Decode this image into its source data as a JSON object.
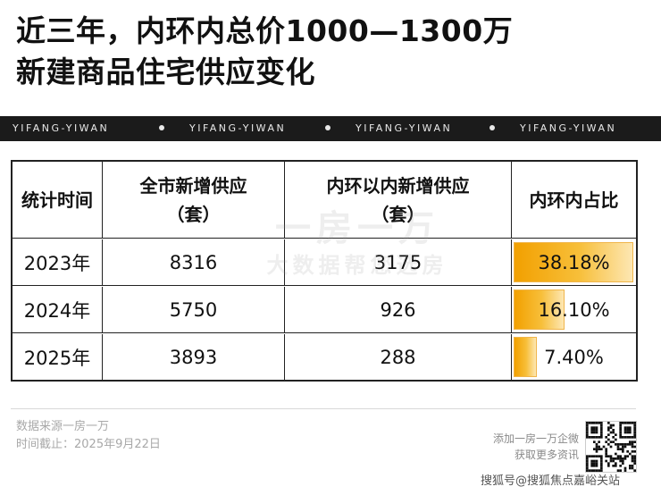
{
  "title": {
    "line1": "近三年，内环内总价1000—1300万",
    "line2": "新建商品住宅供应变化"
  },
  "strip": {
    "label": "YIFANG-YIWAN"
  },
  "table": {
    "headers": [
      {
        "line1": "统计时间",
        "line2": ""
      },
      {
        "line1": "全市新增供应",
        "line2": "（套）"
      },
      {
        "line1": "内环以内新增供应",
        "line2": "（套）"
      },
      {
        "line1": "内环内占比",
        "line2": ""
      }
    ],
    "rows": [
      {
        "year": "2023年",
        "city": "8316",
        "inner": "3175",
        "share": "38.18%",
        "share_value": 38.18
      },
      {
        "year": "2024年",
        "city": "5750",
        "inner": "926",
        "share": "16.10%",
        "share_value": 16.1
      },
      {
        "year": "2025年",
        "city": "3893",
        "inner": "288",
        "share": "7.40%",
        "share_value": 7.4
      }
    ]
  },
  "watermark": {
    "line1": "一房一万",
    "line2": "大数据帮您选房"
  },
  "footer": {
    "source": "数据来源一房一万",
    "date": "时间截止：2025年9月22日",
    "promo_line1": "添加一房一万企微",
    "promo_line2": "获取更多资讯",
    "credit": "搜狐号@搜狐焦点嘉峪关站"
  },
  "colors": {
    "bar": "#f2a000",
    "strip": "#1b1b1b"
  }
}
